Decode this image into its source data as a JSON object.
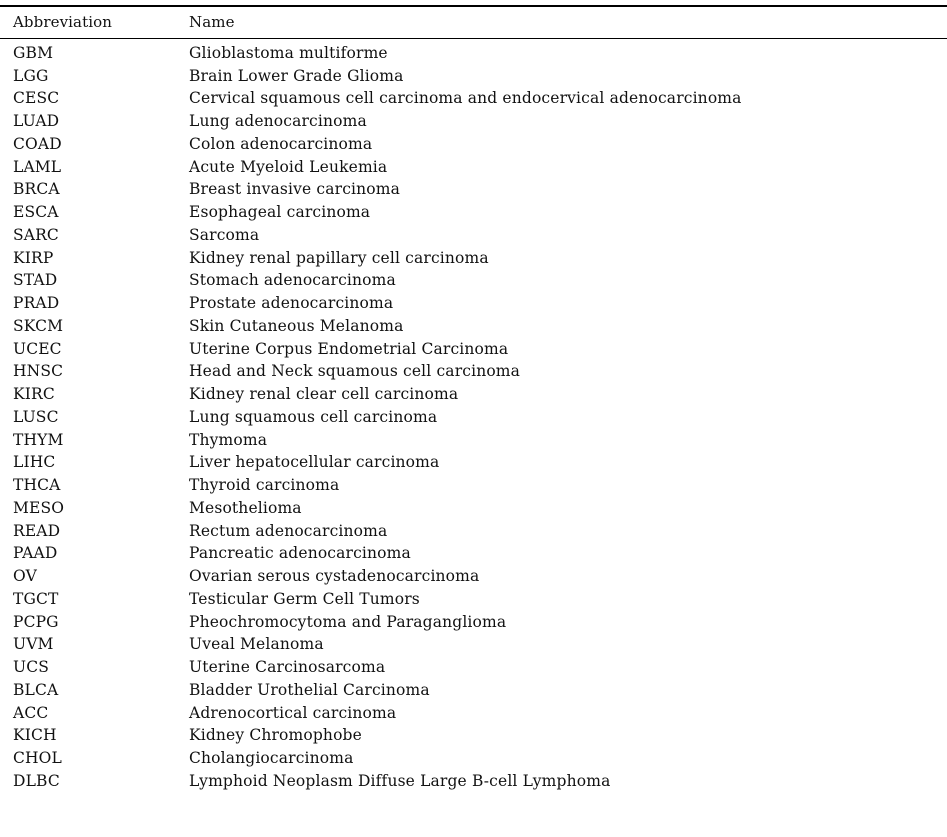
{
  "table": {
    "headers": {
      "abbreviation": "Abbreviation",
      "name": "Name"
    },
    "rows": [
      {
        "abbr": "GBM",
        "name": "Glioblastoma multiforme"
      },
      {
        "abbr": "LGG",
        "name": "Brain Lower Grade Glioma"
      },
      {
        "abbr": "CESC",
        "name": "Cervical squamous cell carcinoma and endocervical adenocarcinoma"
      },
      {
        "abbr": "LUAD",
        "name": "Lung adenocarcinoma"
      },
      {
        "abbr": "COAD",
        "name": "Colon adenocarcinoma"
      },
      {
        "abbr": "LAML",
        "name": "Acute Myeloid Leukemia"
      },
      {
        "abbr": "BRCA",
        "name": "Breast invasive carcinoma"
      },
      {
        "abbr": "ESCA",
        "name": "Esophageal carcinoma"
      },
      {
        "abbr": "SARC",
        "name": "Sarcoma"
      },
      {
        "abbr": "KIRP",
        "name": "Kidney renal papillary cell carcinoma"
      },
      {
        "abbr": "STAD",
        "name": "Stomach adenocarcinoma"
      },
      {
        "abbr": "PRAD",
        "name": "Prostate adenocarcinoma"
      },
      {
        "abbr": "SKCM",
        "name": "Skin Cutaneous Melanoma"
      },
      {
        "abbr": "UCEC",
        "name": "Uterine Corpus Endometrial Carcinoma"
      },
      {
        "abbr": "HNSC",
        "name": "Head and Neck squamous cell carcinoma"
      },
      {
        "abbr": "KIRC",
        "name": "Kidney renal clear cell carcinoma"
      },
      {
        "abbr": "LUSC",
        "name": "Lung squamous cell carcinoma"
      },
      {
        "abbr": "THYM",
        "name": "Thymoma"
      },
      {
        "abbr": "LIHC",
        "name": "Liver hepatocellular carcinoma"
      },
      {
        "abbr": "THCA",
        "name": "Thyroid carcinoma"
      },
      {
        "abbr": "MESO",
        "name": "Mesothelioma"
      },
      {
        "abbr": "READ",
        "name": "Rectum adenocarcinoma"
      },
      {
        "abbr": "PAAD",
        "name": "Pancreatic adenocarcinoma"
      },
      {
        "abbr": "OV",
        "name": "Ovarian serous cystadenocarcinoma"
      },
      {
        "abbr": "TGCT",
        "name": "Testicular Germ Cell Tumors"
      },
      {
        "abbr": "PCPG",
        "name": "Pheochromocytoma and Paraganglioma"
      },
      {
        "abbr": "UVM",
        "name": "Uveal Melanoma"
      },
      {
        "abbr": "UCS",
        "name": "Uterine Carcinosarcoma"
      },
      {
        "abbr": "BLCA",
        "name": "Bladder Urothelial Carcinoma"
      },
      {
        "abbr": "ACC",
        "name": "Adrenocortical carcinoma"
      },
      {
        "abbr": "KICH",
        "name": "Kidney Chromophobe"
      },
      {
        "abbr": "CHOL",
        "name": "Cholangiocarcinoma"
      },
      {
        "abbr": "DLBC",
        "name": "Lymphoid Neoplasm Diffuse Large B-cell Lymphoma"
      }
    ]
  }
}
